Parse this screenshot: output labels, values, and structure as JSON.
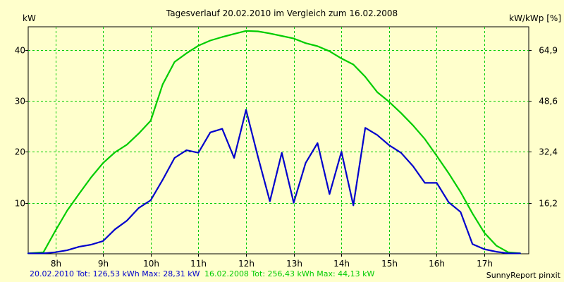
{
  "chart_data": {
    "type": "line",
    "title": "Tagesverlauf 20.02.2010 im Vergleich zum 16.02.2008",
    "ylabel_left": "kW",
    "ylabel_right": "kW/kWp [%]",
    "grid": true,
    "xlim": [
      7.43,
      17.93
    ],
    "ylim": [
      0,
      44.5
    ],
    "x_ticks": [
      8,
      9,
      10,
      11,
      12,
      13,
      14,
      15,
      16,
      17
    ],
    "x_tick_labels": [
      "8h",
      "9h",
      "10h",
      "11h",
      "12h",
      "13h",
      "14h",
      "15h",
      "16h",
      "17h"
    ],
    "y_ticks_left": [
      10,
      20,
      30,
      40
    ],
    "y_ticks_left_labels": [
      "10",
      "20",
      "30",
      "40"
    ],
    "y_ticks_right_at": [
      10,
      20,
      30,
      40
    ],
    "y_ticks_right_labels": [
      "16,2",
      "32,4",
      "48,6",
      "64,9"
    ],
    "series": [
      {
        "name": "20.02.2010",
        "color": "#0000cc",
        "x": [
          7.43,
          7.75,
          8.0,
          8.25,
          8.5,
          8.75,
          9.0,
          9.25,
          9.5,
          9.75,
          10.0,
          10.25,
          10.5,
          10.75,
          11.0,
          11.25,
          11.5,
          11.75,
          12.0,
          12.25,
          12.5,
          12.75,
          13.0,
          13.25,
          13.5,
          13.75,
          14.0,
          14.25,
          14.5,
          14.75,
          15.0,
          15.25,
          15.5,
          15.75,
          16.0,
          16.25,
          16.5,
          16.75,
          17.0,
          17.25,
          17.5,
          17.75
        ],
        "y": [
          0.1,
          0.1,
          0.3,
          0.7,
          1.4,
          1.8,
          2.5,
          4.8,
          6.5,
          9.0,
          10.5,
          14.5,
          18.8,
          20.3,
          19.8,
          23.8,
          24.5,
          18.8,
          28.2,
          19.0,
          10.3,
          19.8,
          10.0,
          17.8,
          21.7,
          11.7,
          20.0,
          9.5,
          24.7,
          23.3,
          21.3,
          19.8,
          17.2,
          13.9,
          13.9,
          10.1,
          8.2,
          1.9,
          0.9,
          0.4,
          0.1,
          0.1
        ]
      },
      {
        "name": "16.02.2008",
        "color": "#00cc00",
        "x": [
          7.43,
          7.75,
          8.0,
          8.25,
          8.5,
          8.75,
          9.0,
          9.25,
          9.5,
          9.75,
          10.0,
          10.25,
          10.5,
          10.75,
          11.0,
          11.25,
          11.5,
          11.75,
          12.0,
          12.25,
          12.5,
          12.75,
          13.0,
          13.25,
          13.5,
          13.75,
          14.0,
          14.25,
          14.5,
          14.75,
          15.0,
          15.25,
          15.5,
          15.75,
          16.0,
          16.25,
          16.5,
          16.75,
          17.0,
          17.25,
          17.5,
          17.75
        ],
        "y": [
          0.1,
          0.3,
          4.5,
          8.5,
          11.8,
          15.0,
          17.8,
          19.9,
          21.4,
          23.6,
          26.1,
          33.2,
          37.6,
          39.3,
          40.8,
          41.8,
          42.5,
          43.1,
          43.7,
          43.6,
          43.2,
          42.7,
          42.2,
          41.3,
          40.7,
          39.7,
          38.3,
          37.1,
          34.7,
          31.7,
          29.8,
          27.6,
          25.2,
          22.5,
          19.2,
          15.8,
          12.1,
          7.9,
          4.1,
          1.6,
          0.3,
          0.1
        ]
      }
    ]
  },
  "footer": {
    "blue_text": "20.02.2010 Tot: 126,53 kWh Max: 28,31 kW",
    "green_text": "16.02.2008 Tot: 256,43 kWh Max: 44,13 kW",
    "credit": "SunnyReport pinxit"
  }
}
